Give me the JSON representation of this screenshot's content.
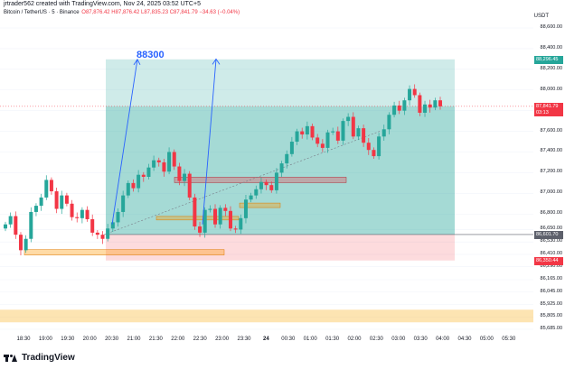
{
  "header": {
    "attribution": "jrtrader562 created with TradingView.com, Nov 24, 2025 03:52 UTC+5",
    "symbol": "Bitcoin / TetherUS · 5 · Binance",
    "ohlc": "O87,876.42 H87,876.42 L87,835.23 C87,841.79 −34.63 (−0.04%)",
    "currency": "USDT"
  },
  "annotation": "88300",
  "price_axis": {
    "ticks": [
      "88,600.00",
      "88,400.00",
      "88,200.00",
      "88,000.00",
      "87,800.00",
      "87,600.00",
      "87,400.00",
      "87,200.00",
      "87,000.00",
      "86,800.00",
      "86,650.00",
      "86,530.00",
      "86,410.00",
      "86,290.00",
      "86,165.00",
      "86,045.00",
      "85,925.00",
      "85,805.00",
      "85,685.00"
    ],
    "tag_target": "88,296.45",
    "tag_current": "87,841.79",
    "tag_countdown": "03:13",
    "tag_entry": "86,601.70",
    "tag_stop": "86,350.44"
  },
  "time_axis": [
    "18:30",
    "19:00",
    "19:30",
    "20:00",
    "20:30",
    "21:00",
    "21:30",
    "22:00",
    "22:30",
    "23:00",
    "23:30",
    "24",
    "00:30",
    "01:00",
    "01:30",
    "02:00",
    "02:30",
    "03:00",
    "03:30",
    "04:00",
    "04:30",
    "05:00",
    "05:30"
  ],
  "brand": "TradingView",
  "colors": {
    "up": "#26a69a",
    "down": "#f23645",
    "accent": "#2962ff"
  },
  "chart_data": {
    "type": "candlestick",
    "symbol": "Bitcoin / TetherUS",
    "interval": "5",
    "y_range": [
      85685,
      88700
    ],
    "long_position": {
      "entry": 86601.7,
      "target": 88296.45,
      "stop": 86350.44
    },
    "last_price": 87841.79,
    "closes": [
      86700,
      86780,
      86600,
      86450,
      86560,
      86820,
      86880,
      86960,
      87130,
      87020,
      86850,
      86980,
      86900,
      86770,
      86760,
      86840,
      86750,
      86620,
      86600,
      86560,
      86660,
      86720,
      86820,
      86980,
      87100,
      87050,
      87180,
      87160,
      87250,
      87320,
      87300,
      87210,
      87400,
      87260,
      87120,
      87190,
      86960,
      86680,
      86620,
      86840,
      86850,
      86700,
      86860,
      86830,
      86660,
      86650,
      86760,
      86940,
      86980,
      87040,
      87110,
      87080,
      87030,
      87200,
      87290,
      87380,
      87500,
      87600,
      87570,
      87650,
      87540,
      87480,
      87440,
      87590,
      87600,
      87510,
      87700,
      87740,
      87550,
      87630,
      87490,
      87420,
      87360,
      87550,
      87620,
      87760,
      87850,
      87800,
      87900,
      88010,
      87950,
      87780,
      87860,
      87830,
      87900,
      87841.79
    ]
  }
}
